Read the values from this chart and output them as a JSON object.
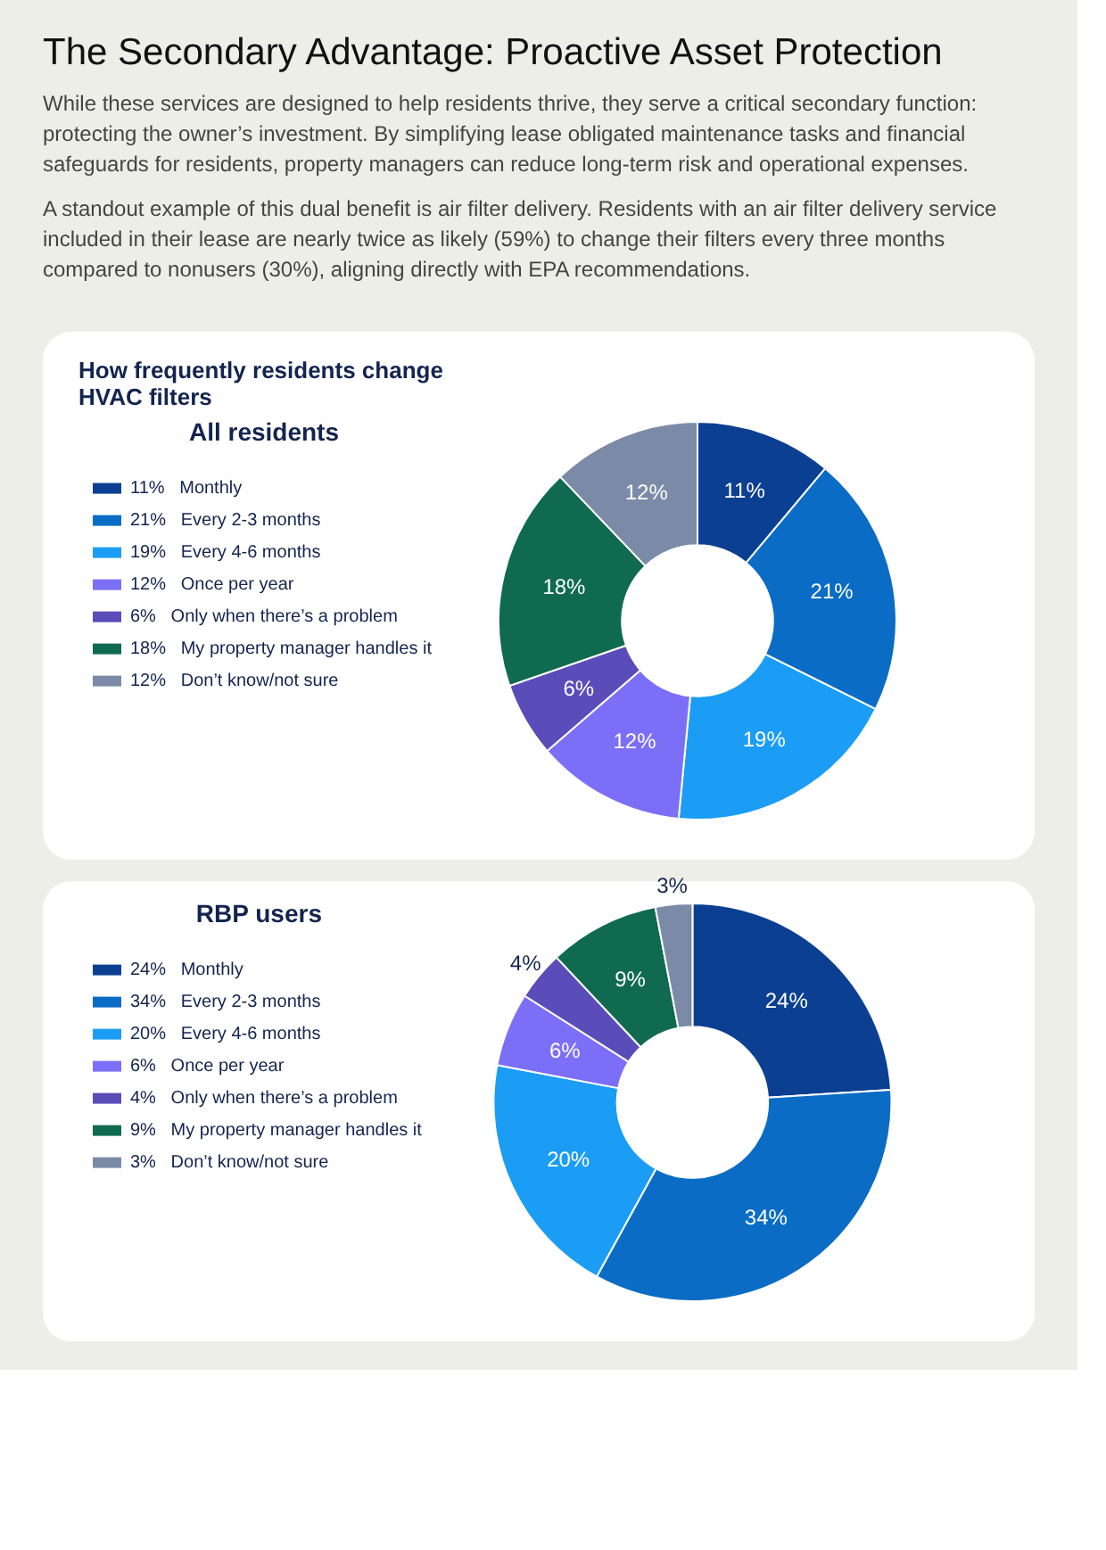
{
  "chart_data": [
    {
      "type": "other",
      "title": "The Secondary Advantage: Proactive Asset Protection",
      "annotations": [
        "While these services are designed to help residents thrive, they serve a critical secondary function: protecting the owner’s investment. By simplifying lease obligated maintenance tasks and financial safeguards for residents, property managers can reduce long-term risk and operational expenses.",
        "A standout example of this dual benefit is air filter delivery. Residents with an air filter delivery service included in their lease are nearly twice as likely (59%) to change their filters every three months compared to nonusers (30%), aligning directly with EPA recommendations."
      ]
    },
    {
      "type": "donut",
      "title": "How frequently residents change HVAC filters",
      "legend_title": "All residents",
      "legend": "left",
      "categories": [
        "Monthly",
        "Every 2-3 months",
        "Every 4-6 months",
        "Once per year",
        "Only when there’s a problem",
        "My property manager handles it",
        "Don’t know/not sure"
      ],
      "values": [
        11,
        21,
        19,
        12,
        6,
        18,
        12
      ],
      "value_labels": [
        "11%",
        "21%",
        "19%",
        "12%",
        "6%",
        "18%",
        "12%"
      ],
      "colors": [
        "#0b3f91",
        "#0a6cc4",
        "#1b9df5",
        "#7c6ff7",
        "#5a4cb9",
        "#0f6a4f",
        "#7b8ba7"
      ]
    },
    {
      "type": "donut",
      "legend_title": "RBP users",
      "legend": "left",
      "categories": [
        "Monthly",
        "Every 2-3 months",
        "Every 4-6 months",
        "Once per year",
        "Only when there’s a problem",
        "My property manager handles it",
        "Don’t know/not sure"
      ],
      "values": [
        24,
        34,
        20,
        6,
        4,
        9,
        3
      ],
      "value_labels": [
        "24%",
        "34%",
        "20%",
        "6%",
        "4%",
        "9%",
        "3%"
      ],
      "colors": [
        "#0b3f91",
        "#0a6cc4",
        "#1b9df5",
        "#7c6ff7",
        "#5a4cb9",
        "#0f6a4f",
        "#7b8ba7"
      ]
    }
  ]
}
